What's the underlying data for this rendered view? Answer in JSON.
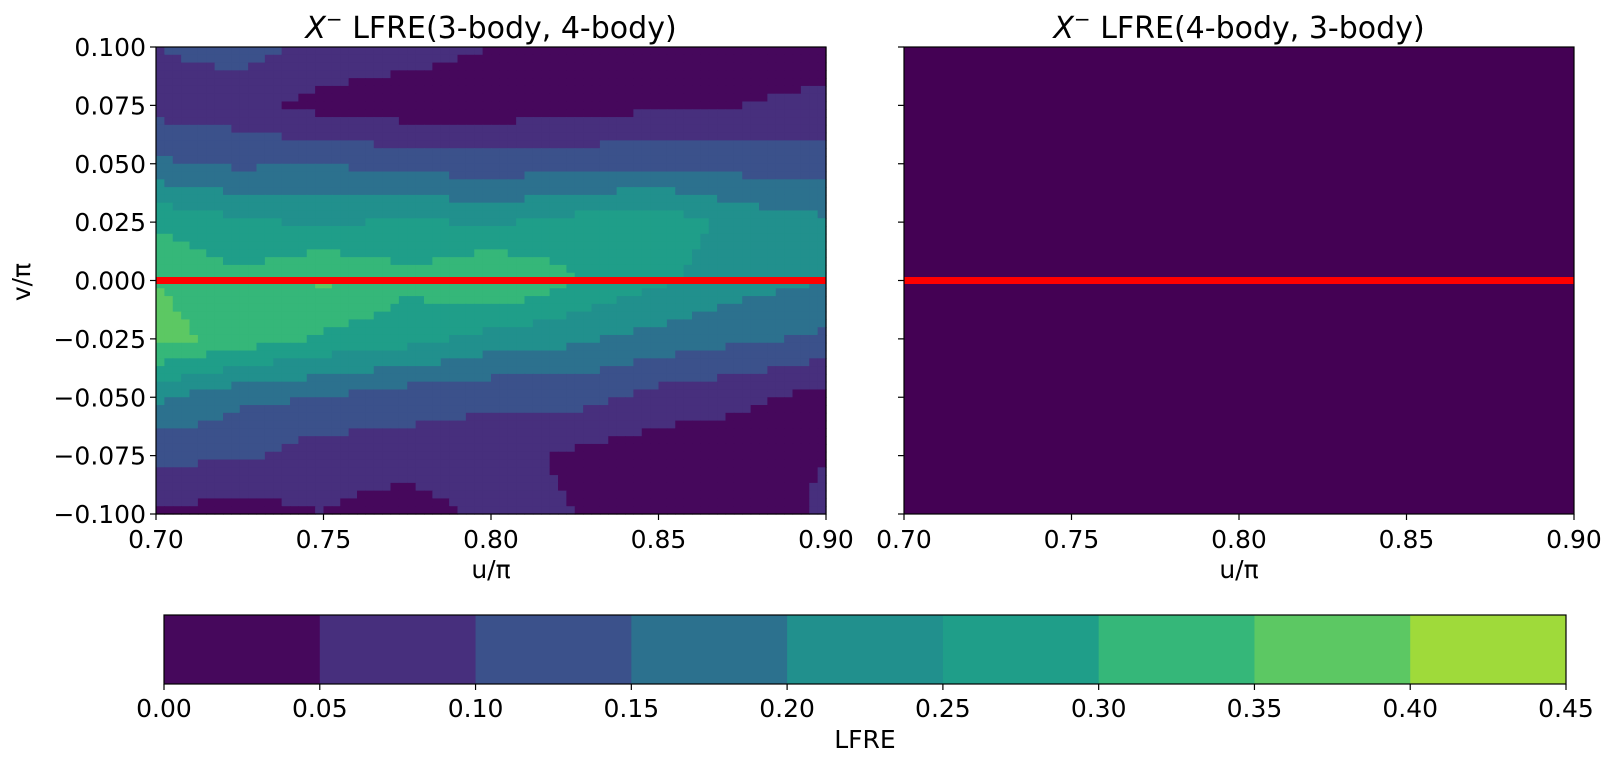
{
  "chart_data": [
    {
      "type": "contour",
      "title_symbol": "X",
      "title_superscript": "−",
      "title_text": " LFRE(3-body, 4-body)",
      "xlabel": "u/π",
      "ylabel": "v/π",
      "xlim": [
        0.7,
        0.9
      ],
      "ylim": [
        -0.1,
        0.1
      ],
      "xticks": [
        "0.70",
        "0.75",
        "0.80",
        "0.85",
        "0.90"
      ],
      "yticks": [
        "0.100",
        "0.075",
        "0.050",
        "0.025",
        "0.000",
        "−0.025",
        "−0.050",
        "−0.075",
        "−0.100"
      ],
      "x": [
        0.7,
        0.725,
        0.75,
        0.775,
        0.8,
        0.825,
        0.85,
        0.875,
        0.9
      ],
      "y": [
        -0.1,
        -0.075,
        -0.05,
        -0.025,
        0.0,
        0.025,
        0.05,
        0.075,
        0.1
      ],
      "z": [
        [
          0.04,
          0.03,
          0.05,
          0.02,
          0.07,
          0.05,
          0.03,
          0.02,
          0.06
        ],
        [
          0.11,
          0.11,
          0.07,
          0.08,
          0.07,
          0.04,
          0.02,
          0.02,
          0.05
        ],
        [
          0.21,
          0.16,
          0.15,
          0.12,
          0.11,
          0.12,
          0.08,
          0.06,
          0.03
        ],
        [
          0.37,
          0.33,
          0.29,
          0.27,
          0.23,
          0.21,
          0.18,
          0.16,
          0.14
        ],
        [
          0.35,
          0.31,
          0.36,
          0.31,
          0.36,
          0.3,
          0.26,
          0.22,
          0.2
        ],
        [
          0.29,
          0.26,
          0.24,
          0.26,
          0.24,
          0.27,
          0.28,
          0.23,
          0.21
        ],
        [
          0.16,
          0.14,
          0.15,
          0.13,
          0.12,
          0.13,
          0.14,
          0.13,
          0.12
        ],
        [
          0.08,
          0.07,
          0.03,
          0.02,
          0.02,
          0.03,
          0.04,
          0.05,
          0.07
        ],
        [
          0.1,
          0.12,
          0.09,
          0.07,
          0.05,
          0.03,
          0.03,
          0.02,
          0.01
        ]
      ],
      "reference_line": {
        "y": 0.0,
        "color": "#ff0000"
      }
    },
    {
      "type": "contour",
      "title_symbol": "X",
      "title_superscript": "−",
      "title_text": " LFRE(4-body, 3-body)",
      "xlabel": "u/π",
      "ylabel": "",
      "xlim": [
        0.7,
        0.9
      ],
      "ylim": [
        -0.1,
        0.1
      ],
      "xticks": [
        "0.70",
        "0.75",
        "0.80",
        "0.85",
        "0.90"
      ],
      "uniform_value": 0.0,
      "reference_line": {
        "y": 0.0,
        "color": "#ff0000"
      }
    },
    {
      "type": "colorbar",
      "label": "LFRE",
      "levels": [
        0.0,
        0.05,
        0.1,
        0.15,
        0.2,
        0.25,
        0.3,
        0.35,
        0.4,
        0.45
      ],
      "ticks": [
        "0.00",
        "0.05",
        "0.10",
        "0.15",
        "0.20",
        "0.25",
        "0.30",
        "0.35",
        "0.40",
        "0.45"
      ],
      "colors": [
        "#46085c",
        "#472f7d",
        "#3b518b",
        "#2c718e",
        "#21908d",
        "#27ad81",
        "#5cc863",
        "#aadc32"
      ],
      "band_colors": [
        "#440154",
        "#481a6c",
        "#472f7d",
        "#414487",
        "#39568c",
        "#31688e",
        "#2a788e",
        "#23888e",
        "#1f988b"
      ],
      "bands": [
        {
          "from": 0.0,
          "to": 0.05,
          "color": "#46085c"
        },
        {
          "from": 0.05,
          "to": 0.1,
          "color": "#472f7d"
        },
        {
          "from": 0.1,
          "to": 0.15,
          "color": "#3b518b"
        },
        {
          "from": 0.15,
          "to": 0.2,
          "color": "#2c718e"
        },
        {
          "from": 0.2,
          "to": 0.25,
          "color": "#21908d"
        },
        {
          "from": 0.25,
          "to": 0.3,
          "color": "#1f9e89"
        },
        {
          "from": 0.3,
          "to": 0.35,
          "color": "#35b779"
        },
        {
          "from": 0.35,
          "to": 0.4,
          "color": "#5cc863"
        },
        {
          "from": 0.4,
          "to": 0.45,
          "color": "#9fda3a"
        }
      ]
    }
  ]
}
